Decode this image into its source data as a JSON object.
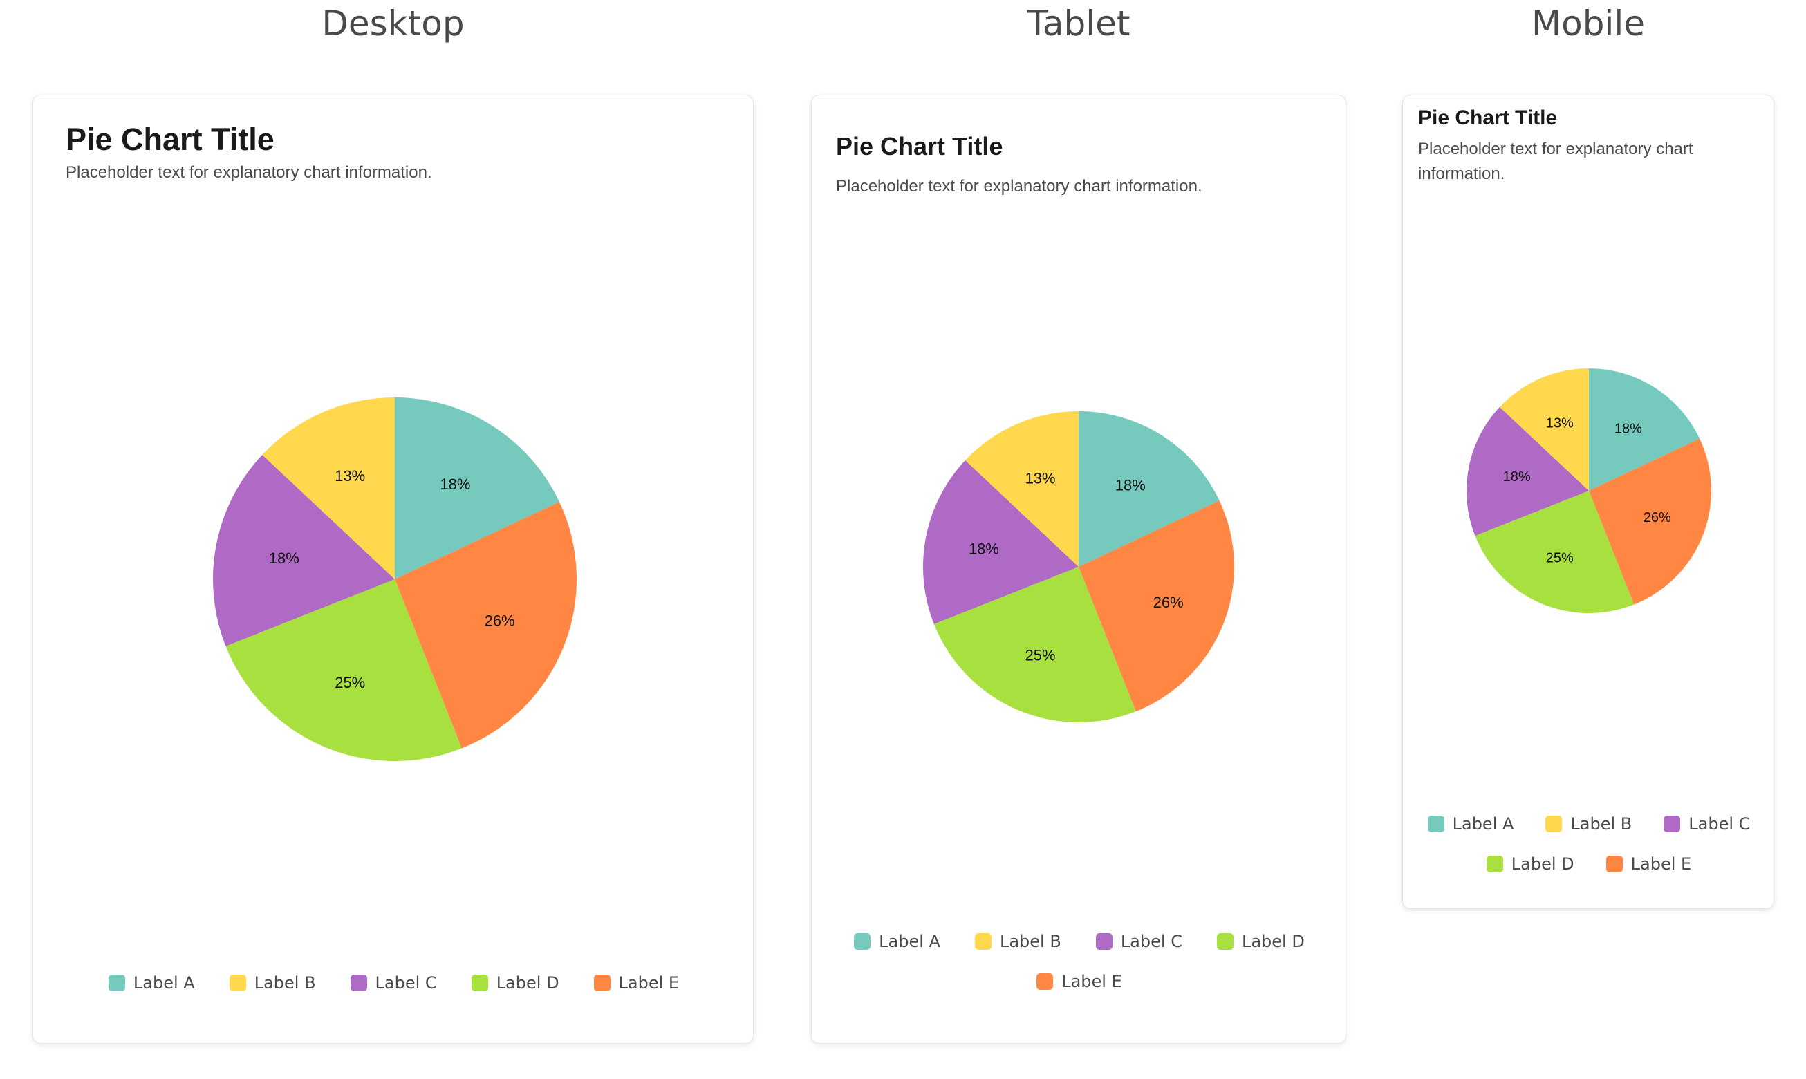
{
  "sections": {
    "desktop": "Desktop",
    "tablet": "Tablet",
    "mobile": "Mobile"
  },
  "card": {
    "title": "Pie Chart Title",
    "description": "Placeholder text for explanatory chart information."
  },
  "chart_data": {
    "type": "pie",
    "title": "Pie Chart Title",
    "subtitle": "Placeholder text for explanatory chart information.",
    "legend_position": "bottom",
    "categories": [
      "Label A",
      "Label E",
      "Label D",
      "Label C",
      "Label B"
    ],
    "values": [
      18,
      26,
      25,
      18,
      13
    ],
    "value_labels": [
      "18%",
      "26%",
      "25%",
      "18%",
      "13%"
    ],
    "colors": [
      "#76c9bd",
      "#ff8743",
      "#a8e040",
      "#ae6ac4",
      "#ffd84e"
    ],
    "legend": [
      {
        "label": "Label A",
        "color": "#76c9bd"
      },
      {
        "label": "Label B",
        "color": "#ffd84e"
      },
      {
        "label": "Label C",
        "color": "#ae6ac4"
      },
      {
        "label": "Label D",
        "color": "#a8e040"
      },
      {
        "label": "Label E",
        "color": "#ff8743"
      }
    ]
  }
}
